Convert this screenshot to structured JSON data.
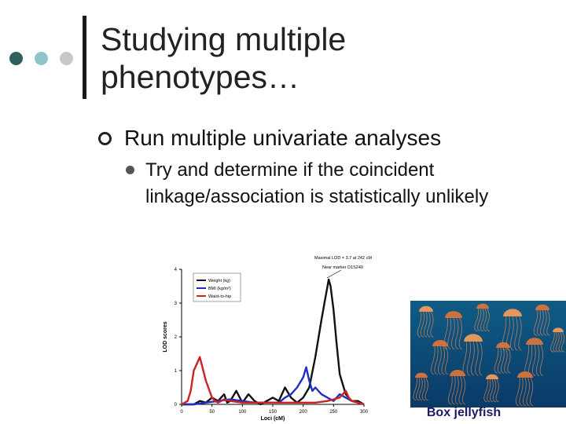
{
  "slide": {
    "title": "Studying multiple phenotypes…",
    "bullets": [
      {
        "text": "Run multiple univariate analyses",
        "sub": [
          {
            "text": "Try and determine if the coincident linkage/association is statistically unlikely"
          }
        ]
      }
    ],
    "image_caption": "Box jellyfish",
    "dot_colors": [
      "#2f5f5f",
      "#8fc4c8",
      "#c8c8c8"
    ]
  },
  "chart_data": {
    "type": "line",
    "xlabel": "Loci (cM)",
    "ylabel": "LOD scores",
    "xlim": [
      0,
      300
    ],
    "ylim": [
      0,
      4
    ],
    "xticks": [
      0,
      50,
      100,
      150,
      200,
      250,
      300
    ],
    "yticks": [
      0,
      1,
      2,
      3,
      4
    ],
    "legend_position": "top-left",
    "annotations": [
      "Maximal LOD = 3.7 at 242 cM",
      "Near marker D1S249"
    ],
    "series": [
      {
        "name": "Weight (kg)",
        "color": "#111111",
        "x": [
          0,
          20,
          30,
          40,
          50,
          60,
          70,
          75,
          80,
          90,
          100,
          110,
          120,
          130,
          140,
          150,
          160,
          170,
          180,
          190,
          200,
          210,
          220,
          230,
          235,
          240,
          242,
          245,
          250,
          255,
          260,
          270,
          280,
          290,
          300
        ],
        "values": [
          0,
          0,
          0.1,
          0.05,
          0.2,
          0.1,
          0.3,
          0.05,
          0.1,
          0.4,
          0.05,
          0.3,
          0.1,
          0,
          0.1,
          0.2,
          0.1,
          0.5,
          0.2,
          0.05,
          0.2,
          0.5,
          1.4,
          2.5,
          3.0,
          3.5,
          3.7,
          3.5,
          2.8,
          1.8,
          0.9,
          0.3,
          0.1,
          0.1,
          0
        ]
      },
      {
        "name": "BMI (kg/m²)",
        "color": "#1f2fbf",
        "x": [
          0,
          20,
          40,
          60,
          80,
          100,
          120,
          140,
          160,
          170,
          180,
          190,
          200,
          205,
          210,
          215,
          220,
          230,
          240,
          250,
          260,
          270,
          280,
          290,
          300
        ],
        "values": [
          0,
          0,
          0.05,
          0.1,
          0.15,
          0.1,
          0.05,
          0.05,
          0.05,
          0.2,
          0.3,
          0.5,
          0.8,
          1.1,
          0.7,
          0.4,
          0.5,
          0.3,
          0.2,
          0.1,
          0.3,
          0.2,
          0.1,
          0.05,
          0
        ]
      },
      {
        "name": "Waist-to-hip",
        "color": "#cc2222",
        "x": [
          0,
          10,
          15,
          20,
          30,
          40,
          50,
          55,
          60,
          70,
          80,
          100,
          120,
          140,
          160,
          180,
          200,
          220,
          240,
          250,
          260,
          270,
          275,
          280,
          290,
          300
        ],
        "values": [
          0,
          0.1,
          0.4,
          1.0,
          1.4,
          0.7,
          0.2,
          0.1,
          0.05,
          0.15,
          0.1,
          0.05,
          0.05,
          0.05,
          0.05,
          0.05,
          0.05,
          0.05,
          0.1,
          0.15,
          0.2,
          0.4,
          0.2,
          0.1,
          0.05,
          0
        ]
      }
    ]
  }
}
